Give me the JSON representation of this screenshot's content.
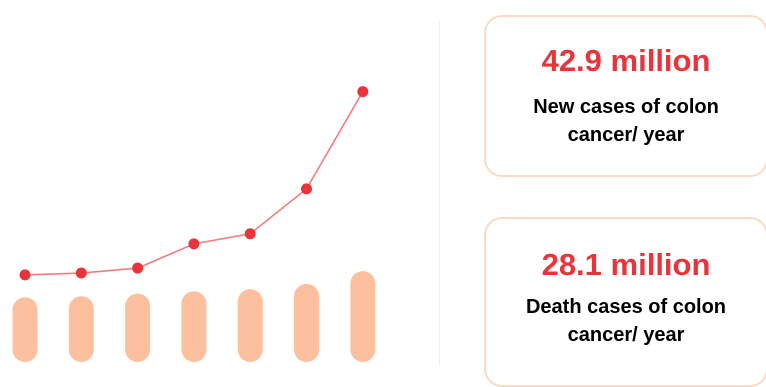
{
  "colors": {
    "bar": "#fdc09e",
    "line": "#f47b7b",
    "point": "#e8343a",
    "stat_value": "#e8343a",
    "card_border": "#fbd9c3"
  },
  "chart_data": {
    "type": "bar",
    "categories": [
      "",
      "",
      "",
      "",
      "",
      "",
      ""
    ],
    "series": [
      {
        "type": "bar",
        "values": [
          20.5,
          20.8,
          21.5,
          22.1,
          22.7,
          24.1,
          27.5
        ]
      },
      {
        "type": "line",
        "values": [
          26.5,
          27.0,
          28.3,
          34.8,
          37.5,
          49.5,
          75.5
        ]
      }
    ],
    "ylim": [
      0,
      100
    ],
    "title": "",
    "xlabel": "",
    "ylabel": "",
    "grid": false,
    "legend": "none"
  },
  "stats": [
    {
      "value": "42.9 million",
      "label": "New cases of colon cancer/ year"
    },
    {
      "value": "28.1 million",
      "label": "Death cases of colon cancer/ year"
    }
  ]
}
